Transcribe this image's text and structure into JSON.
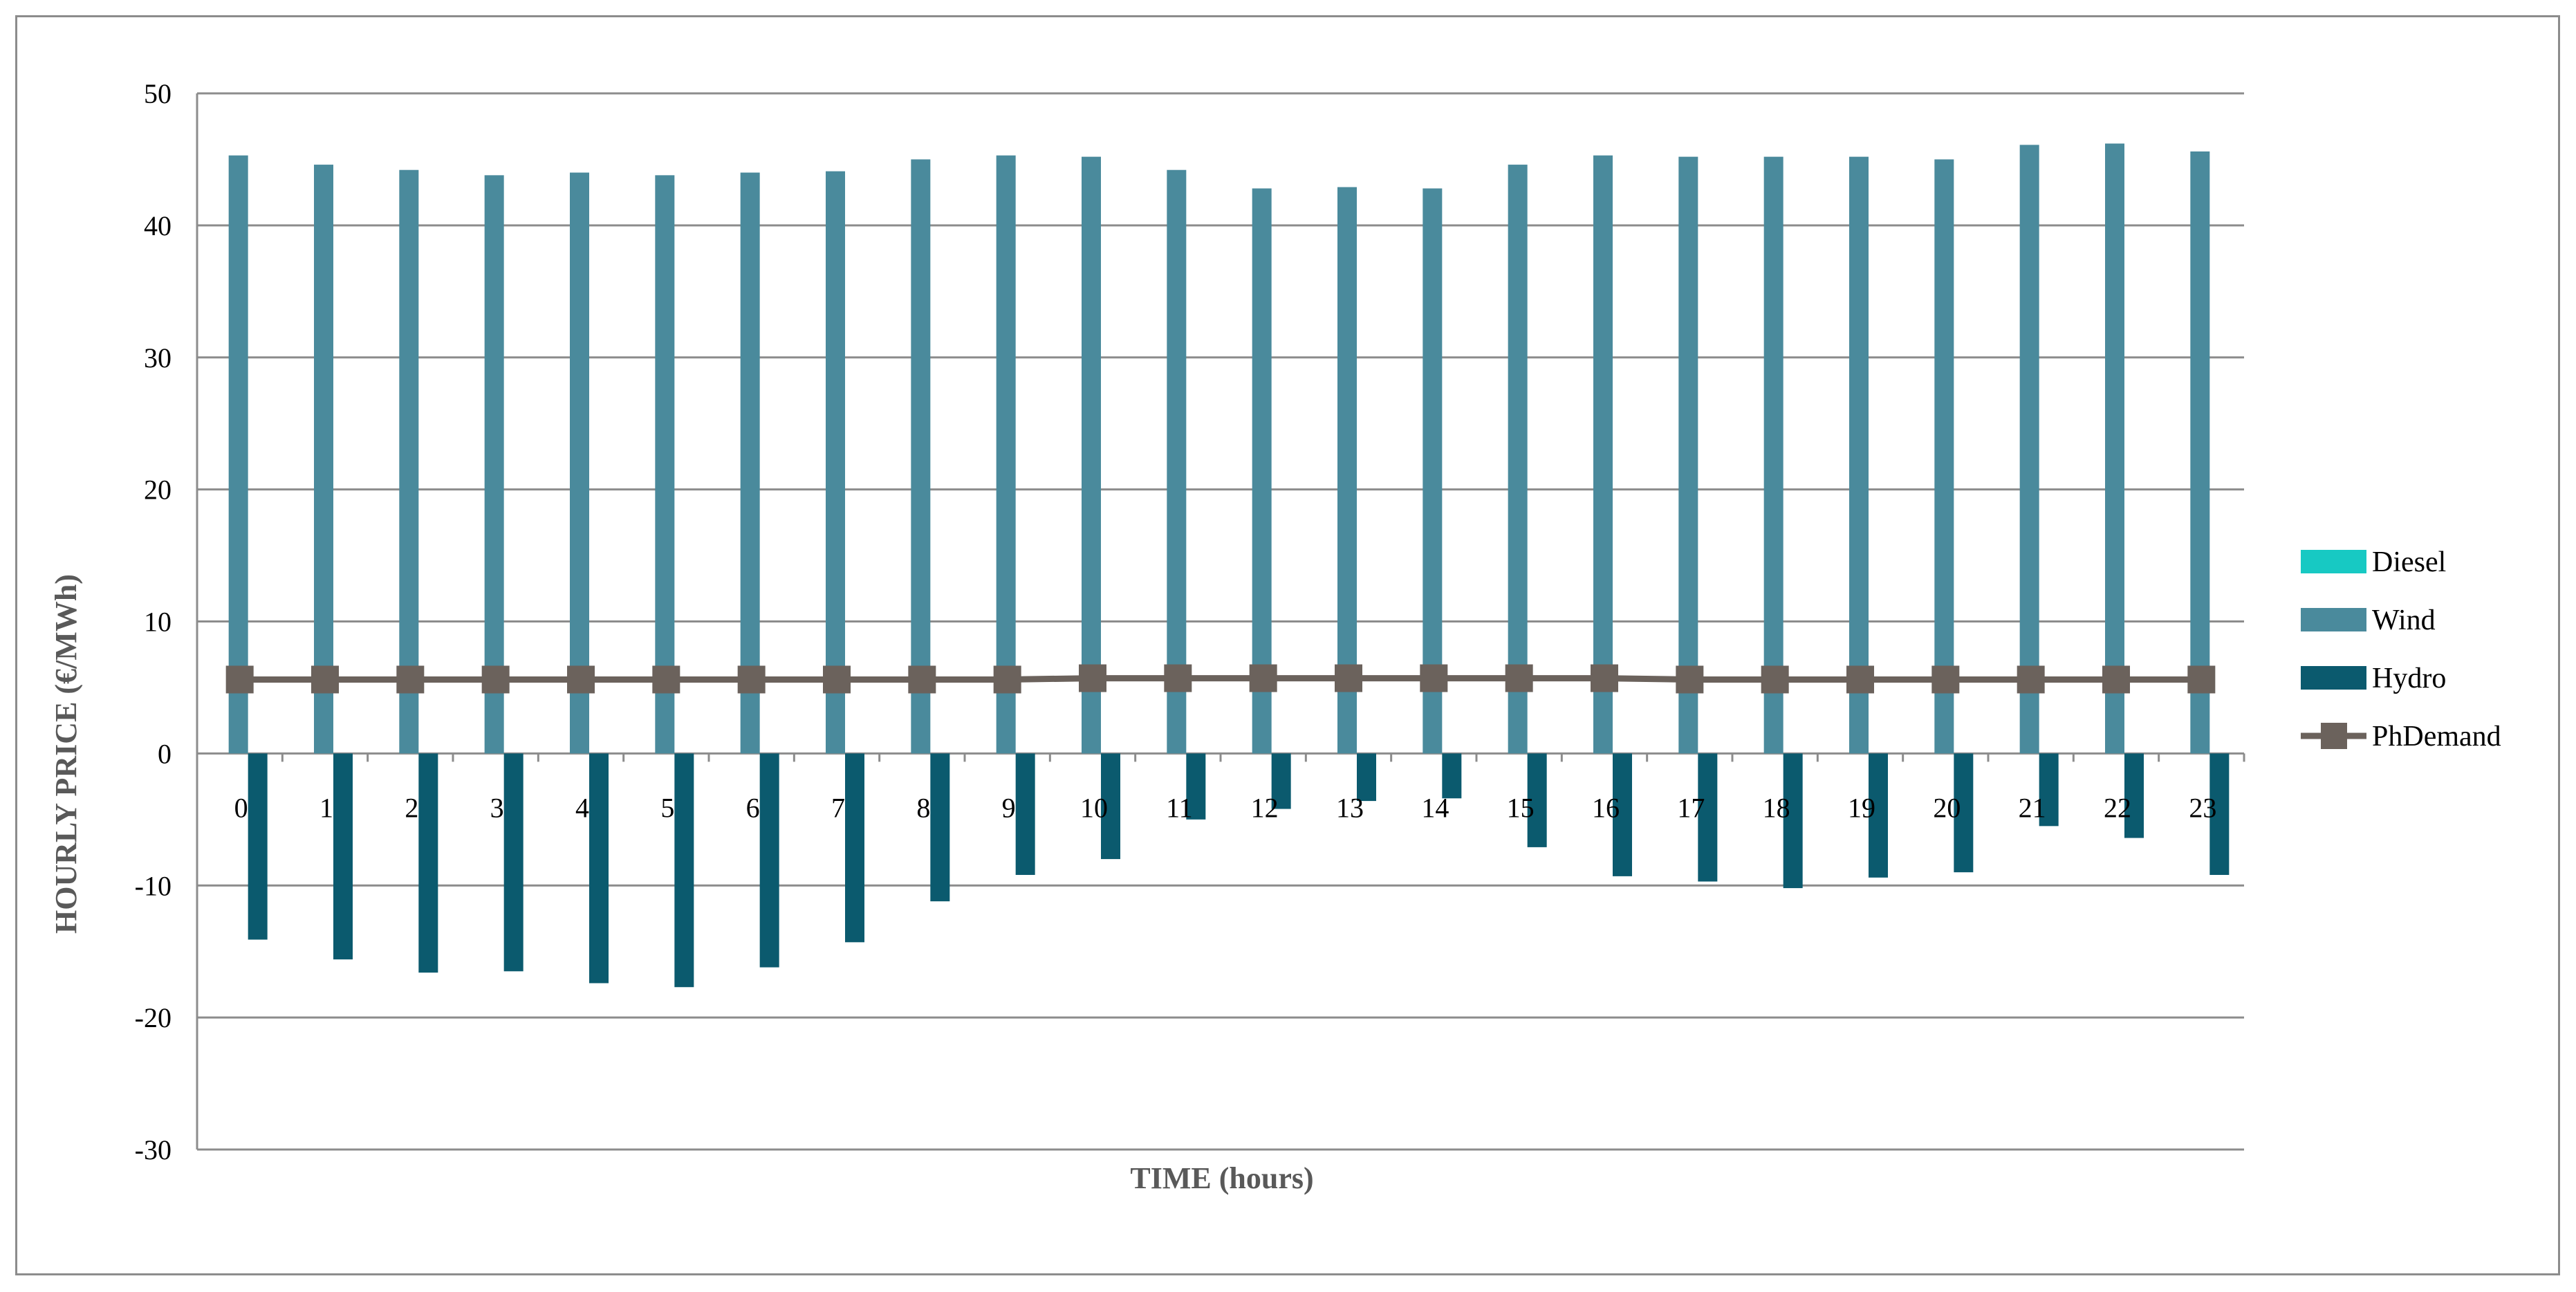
{
  "chart_data": {
    "type": "bar",
    "xlabel": "TIME (hours)",
    "ylabel": "HOURLY PRICE (€/MWh)",
    "ylim": [
      -30,
      50
    ],
    "yticks": [
      -30,
      -20,
      -10,
      0,
      10,
      20,
      30,
      40,
      50
    ],
    "grid": true,
    "legend_position": "right",
    "categories": [
      "0",
      "1",
      "2",
      "3",
      "4",
      "5",
      "6",
      "7",
      "8",
      "9",
      "10",
      "11",
      "12",
      "13",
      "14",
      "15",
      "16",
      "17",
      "18",
      "19",
      "20",
      "21",
      "22",
      "23"
    ],
    "series": [
      {
        "name": "Diesel",
        "kind": "bar",
        "color": "#17c9c3",
        "values": [
          0,
          0,
          0,
          0,
          0,
          0,
          0,
          0,
          0,
          0,
          0,
          0,
          0,
          0,
          0,
          0,
          0,
          0,
          0,
          0,
          0,
          0,
          0,
          0
        ]
      },
      {
        "name": "Wind",
        "kind": "bar",
        "color": "#4a8a9c",
        "values": [
          45.3,
          44.6,
          44.2,
          43.8,
          44.0,
          43.8,
          44.0,
          44.1,
          45.0,
          45.3,
          45.2,
          44.2,
          42.8,
          42.9,
          42.8,
          44.6,
          45.3,
          45.2,
          45.2,
          45.2,
          45.0,
          46.1,
          46.2,
          45.6
        ]
      },
      {
        "name": "Hydro",
        "kind": "bar",
        "color": "#0b5a6e",
        "values": [
          -14.1,
          -15.6,
          -16.6,
          -16.5,
          -17.4,
          -17.7,
          -16.2,
          -14.3,
          -11.2,
          -9.2,
          -8.0,
          -5.0,
          -4.2,
          -3.6,
          -3.4,
          -7.1,
          -9.3,
          -9.7,
          -10.2,
          -9.4,
          -9.0,
          -5.5,
          -6.4,
          -9.2
        ]
      },
      {
        "name": "PhDemand",
        "kind": "line",
        "color": "#6b625c",
        "values": [
          5.6,
          5.6,
          5.6,
          5.6,
          5.6,
          5.6,
          5.6,
          5.6,
          5.6,
          5.6,
          5.7,
          5.7,
          5.7,
          5.7,
          5.7,
          5.7,
          5.7,
          5.6,
          5.6,
          5.6,
          5.6,
          5.6,
          5.6,
          5.6
        ]
      }
    ]
  }
}
